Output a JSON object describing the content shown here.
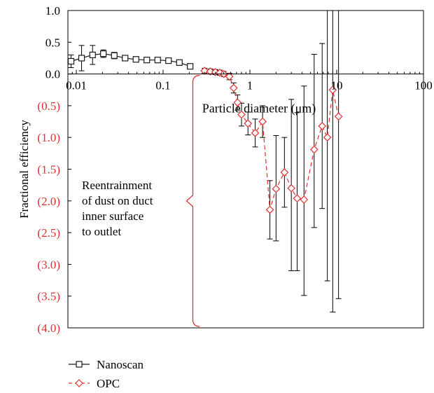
{
  "chart_data": {
    "type": "line",
    "x_scale": "log",
    "xlim": [
      0.008,
      100
    ],
    "ylim": [
      -4.0,
      1.0
    ],
    "grid": false,
    "legend_position": "bottom-left",
    "xlabel": "Particle diameter (μm)",
    "ylabel": "Fractional efficiency",
    "x_tick_values": [
      0.01,
      0.1,
      1,
      10,
      100
    ],
    "x_tick_labels": [
      "0.01",
      "0.1",
      "1",
      "10",
      "100"
    ],
    "y_tick_values": [
      1.0,
      0.5,
      0.0,
      -0.5,
      -1.0,
      -1.5,
      -2.0,
      -2.5,
      -3.0,
      -3.5,
      -4.0
    ],
    "y_tick_labels": [
      "1.0",
      "0.5",
      "0.0",
      "(0.5)",
      "(1.0)",
      "(1.5)",
      "(2.0)",
      "(2.5)",
      "(3.0)",
      "(3.5)",
      "(4.0)"
    ],
    "colors": {
      "nanoscan": "#1a1a1a",
      "opc": "#e03030",
      "negative_labels": "#e03030"
    },
    "series": [
      {
        "name": "Nanoscan",
        "marker": "square",
        "line": "solid",
        "x": [
          0.0087,
          0.0115,
          0.0154,
          0.0205,
          0.0274,
          0.0365,
          0.0487,
          0.0649,
          0.0866,
          0.1155,
          0.154,
          0.205
        ],
        "y": [
          0.2,
          0.25,
          0.3,
          0.32,
          0.29,
          0.25,
          0.23,
          0.22,
          0.22,
          0.21,
          0.18,
          0.12
        ],
        "err": [
          0.1,
          0.2,
          0.15,
          0.06,
          0.05,
          0.04,
          0.03,
          0.03,
          0.03,
          0.03,
          0.03,
          0.03
        ]
      },
      {
        "name": "OPC",
        "marker": "diamond",
        "line": "dashed",
        "x": [
          0.3,
          0.35,
          0.4,
          0.45,
          0.5,
          0.58,
          0.65,
          0.72,
          0.8,
          0.95,
          1.15,
          1.4,
          1.7,
          2.0,
          2.5,
          3.0,
          3.5,
          4.2,
          5.5,
          6.8,
          7.8,
          9.0,
          10.5
        ],
        "y": [
          0.05,
          0.04,
          0.03,
          0.02,
          0.0,
          -0.04,
          -0.22,
          -0.45,
          -0.64,
          -0.78,
          -0.93,
          -0.75,
          -2.14,
          -1.81,
          -1.55,
          -1.8,
          -1.96,
          -1.98,
          -1.19,
          -0.82,
          -1.0,
          -0.25,
          -0.67
        ],
        "err_low": [
          0.04,
          0.04,
          0.04,
          0.04,
          0.04,
          0.05,
          0.08,
          0.12,
          0.18,
          0.18,
          0.22,
          0.25,
          0.46,
          0.82,
          0.55,
          1.3,
          1.14,
          1.51,
          1.23,
          1.3,
          2.26,
          3.5,
          2.87
        ],
        "err_high": [
          0.04,
          0.04,
          0.04,
          0.04,
          0.04,
          0.05,
          0.08,
          0.12,
          0.18,
          0.18,
          0.22,
          0.25,
          0.46,
          0.84,
          0.55,
          1.4,
          1.35,
          1.79,
          1.5,
          1.3,
          2.12,
          1.25,
          1.67
        ]
      }
    ],
    "annotation": {
      "lines": [
        "Reentrainment",
        "of dust on duct",
        "inner surface",
        "to outlet"
      ],
      "bracket_x": 0.22,
      "bracket_y_top": 0.0,
      "bracket_y_bottom": -4.0,
      "pointer_y": -2.0,
      "color": "#e03030"
    }
  }
}
